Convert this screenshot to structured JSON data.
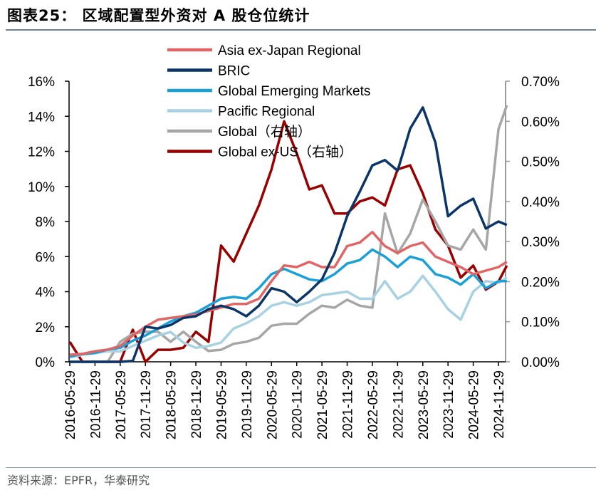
{
  "title": "图表25： 区域配置型外资对 A 股仓位统计",
  "source": "资料来源：EPFR，华泰研究",
  "chart_data": {
    "type": "line",
    "title": "区域配置型外资对 A 股仓位统计",
    "x": [
      "2016-05",
      "2016-08",
      "2016-11",
      "2017-02",
      "2017-05",
      "2017-08",
      "2017-11",
      "2018-02",
      "2018-05",
      "2018-08",
      "2018-11",
      "2019-02",
      "2019-05",
      "2019-08",
      "2019-11",
      "2020-02",
      "2020-05",
      "2020-08",
      "2020-11",
      "2021-02",
      "2021-05",
      "2021-08",
      "2021-11",
      "2022-02",
      "2022-05",
      "2022-08",
      "2022-11",
      "2023-02",
      "2023-05",
      "2023-08",
      "2023-11",
      "2024-02",
      "2024-05",
      "2024-08",
      "2024-11",
      "2025-01"
    ],
    "x_tick_labels": [
      "2016-05-29",
      "2016-11-29",
      "2017-05-29",
      "2017-11-29",
      "2018-05-29",
      "2018-11-29",
      "2019-05-29",
      "2019-11-29",
      "2020-05-29",
      "2020-11-29",
      "2021-05-29",
      "2021-11-29",
      "2022-05-29",
      "2022-11-29",
      "2023-05-29",
      "2023-11-29",
      "2024-05-29",
      "2024-11-29"
    ],
    "y_left": {
      "range": [
        0,
        16
      ],
      "ticks": [
        "0%",
        "2%",
        "4%",
        "6%",
        "8%",
        "10%",
        "12%",
        "14%",
        "16%"
      ]
    },
    "y_right": {
      "range": [
        0,
        0.7
      ],
      "ticks": [
        "0.00%",
        "0.10%",
        "0.20%",
        "0.30%",
        "0.40%",
        "0.50%",
        "0.60%",
        "0.70%"
      ]
    },
    "grid": false,
    "legend_placement": "top-center",
    "series": [
      {
        "name": "Asia ex-Japan Regional",
        "axis": "left",
        "color": "#e06666",
        "values": [
          0.4,
          0.45,
          0.6,
          0.7,
          0.9,
          1.5,
          2.0,
          2.4,
          2.5,
          2.6,
          2.7,
          2.9,
          3.1,
          3.3,
          3.3,
          3.6,
          4.6,
          5.5,
          5.4,
          5.7,
          5.4,
          5.4,
          6.6,
          6.8,
          7.4,
          6.6,
          6.2,
          6.6,
          6.8,
          6.0,
          5.7,
          5.4,
          5.0,
          5.2,
          5.4,
          5.7
        ]
      },
      {
        "name": "BRIC",
        "axis": "left",
        "color": "#0b3467",
        "values": [
          0,
          0,
          0,
          0,
          0,
          0.05,
          2.0,
          1.9,
          2.1,
          2.5,
          2.6,
          3.0,
          3.2,
          3.0,
          2.6,
          3.2,
          4.2,
          4.0,
          3.4,
          4.0,
          4.7,
          6.2,
          8.3,
          9.7,
          11.2,
          11.5,
          10.9,
          13.3,
          14.5,
          12.5,
          8.3,
          8.9,
          9.3,
          7.6,
          8.0,
          7.8
        ]
      },
      {
        "name": "Global Emerging Markets",
        "axis": "left",
        "color": "#1aa0d8",
        "values": [
          0.3,
          0.45,
          0.5,
          0.7,
          0.8,
          1.2,
          1.5,
          1.9,
          2.3,
          2.6,
          2.8,
          3.2,
          3.6,
          3.7,
          3.6,
          4.2,
          5.0,
          5.3,
          5.0,
          4.7,
          4.6,
          5.0,
          5.6,
          5.8,
          6.4,
          6.0,
          5.4,
          6.0,
          5.8,
          5.0,
          4.8,
          4.4,
          5.0,
          4.2,
          4.6,
          4.6
        ]
      },
      {
        "name": "Pacific Regional",
        "axis": "left",
        "color": "#a8d1e2",
        "values": [
          0.25,
          0.4,
          0.5,
          0.6,
          0.6,
          0.9,
          1.2,
          1.5,
          1.7,
          1.1,
          0.8,
          0.9,
          1.1,
          1.9,
          2.2,
          2.6,
          3.2,
          3.4,
          3.2,
          3.4,
          3.8,
          3.9,
          4.0,
          3.6,
          3.6,
          4.6,
          3.6,
          4.0,
          4.9,
          4.0,
          3.0,
          2.4,
          4.0,
          4.6,
          4.5,
          4.8
        ]
      },
      {
        "name": "Global（右轴）",
        "axis": "right",
        "color": "#a6a6a6",
        "values": [
          0,
          0,
          0,
          0,
          0.05,
          0.07,
          0.075,
          0.075,
          0.05,
          0.075,
          0.05,
          0.027,
          0.03,
          0.045,
          0.05,
          0.06,
          0.09,
          0.095,
          0.095,
          0.12,
          0.14,
          0.135,
          0.155,
          0.14,
          0.135,
          0.37,
          0.27,
          0.32,
          0.405,
          0.35,
          0.29,
          0.28,
          0.33,
          0.28,
          0.58,
          0.64
        ]
      },
      {
        "name": "Global ex-US（右轴）",
        "axis": "right",
        "color": "#990000",
        "values": [
          0.05,
          0,
          0,
          0,
          0,
          0.08,
          0,
          0.03,
          0.03,
          0.035,
          0.075,
          0.05,
          0.29,
          0.25,
          0.32,
          0.39,
          0.48,
          0.6,
          0.52,
          0.43,
          0.44,
          0.37,
          0.37,
          0.4,
          0.41,
          0.39,
          0.48,
          0.49,
          0.42,
          0.33,
          0.29,
          0.21,
          0.24,
          0.18,
          0.2,
          0.24
        ]
      }
    ]
  }
}
